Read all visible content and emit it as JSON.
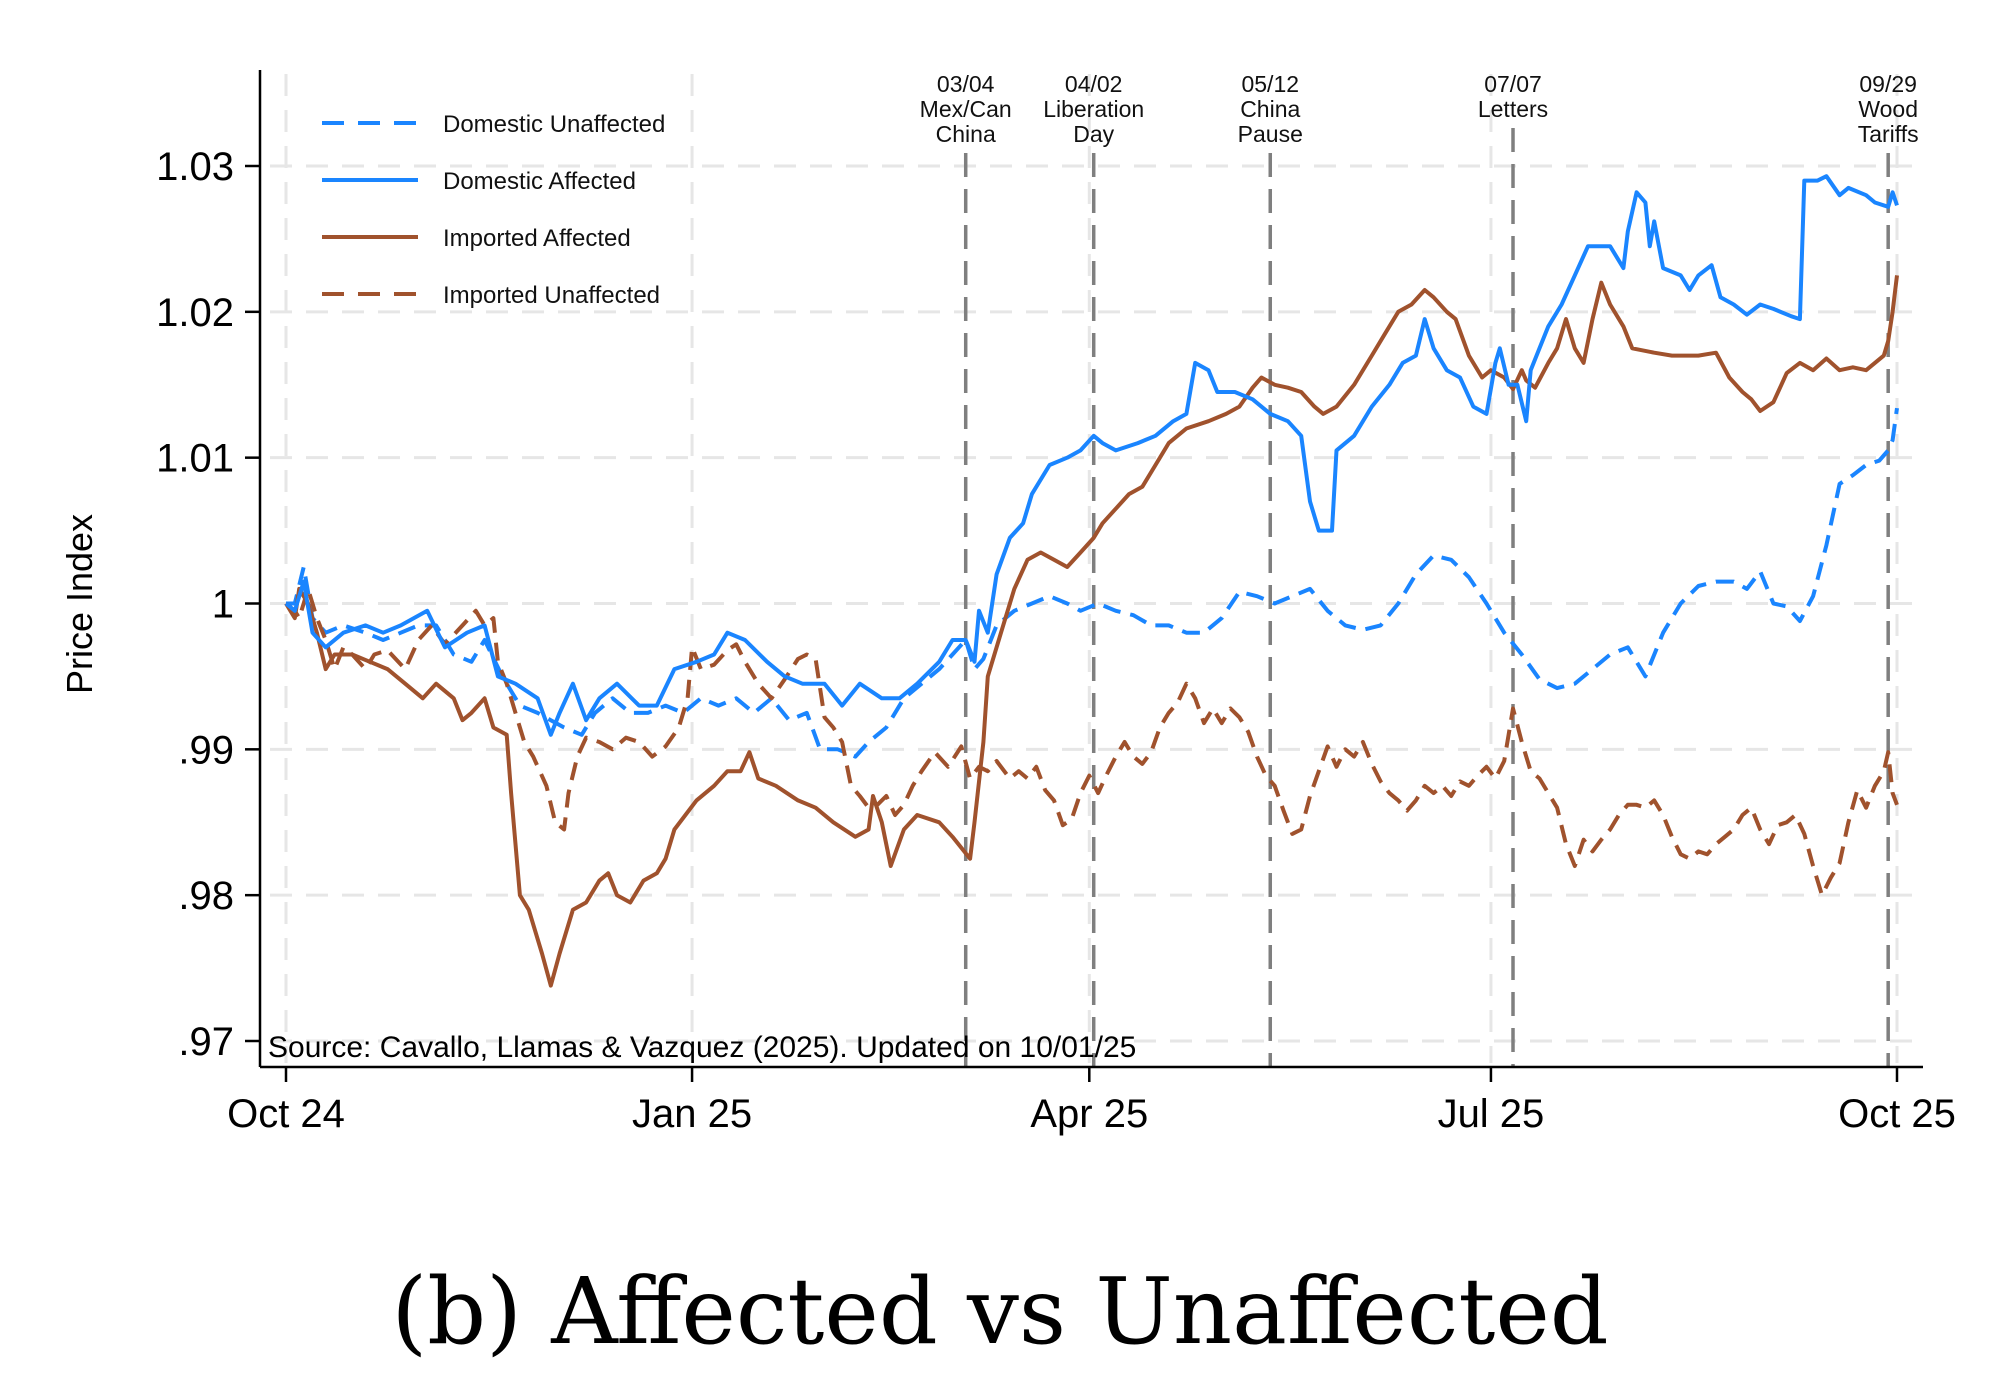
{
  "caption": "(b) Affected vs Unaffected",
  "chart_data": {
    "type": "line",
    "title": "",
    "xlabel": "",
    "ylabel": "Price Index",
    "x_units": "days since Oct 1, 2024",
    "xlim": [
      0,
      365
    ],
    "ylim": [
      0.97,
      1.035
    ],
    "x_ticks": [
      {
        "day": 0,
        "label": "Oct 24"
      },
      {
        "day": 92,
        "label": "Jan 25"
      },
      {
        "day": 182,
        "label": "Apr 25"
      },
      {
        "day": 273,
        "label": "Jul 25"
      },
      {
        "day": 365,
        "label": "Oct 25"
      }
    ],
    "y_ticks": [
      {
        "value": 0.97,
        "label": ".97"
      },
      {
        "value": 0.98,
        "label": ".98"
      },
      {
        "value": 0.99,
        "label": ".99"
      },
      {
        "value": 1.0,
        "label": "1"
      },
      {
        "value": 1.01,
        "label": "1.01"
      },
      {
        "value": 1.02,
        "label": "1.02"
      },
      {
        "value": 1.03,
        "label": "1.03"
      }
    ],
    "grid": true,
    "legend_position": "top-left",
    "note": "Source: Cavallo, Llamas & Vazquez (2025). Updated on 10/01/25",
    "events": [
      {
        "day": 154,
        "lines": [
          "03/04",
          "Mex/Can",
          "China"
        ]
      },
      {
        "day": 183,
        "lines": [
          "04/02",
          "Liberation",
          "Day"
        ]
      },
      {
        "day": 223,
        "lines": [
          "05/12",
          "China",
          "Pause"
        ]
      },
      {
        "day": 278,
        "lines": [
          "07/07",
          "Letters"
        ]
      },
      {
        "day": 363,
        "lines": [
          "09/29",
          "Wood",
          "Tariffs"
        ]
      }
    ],
    "series": [
      {
        "name": "Domestic Unaffected",
        "color": "#1a85ff",
        "style": "dashed",
        "x": [
          0,
          2,
          4,
          6,
          9,
          13,
          18,
          22,
          26,
          30,
          34,
          38,
          42,
          45,
          49,
          53,
          57,
          60,
          63,
          67,
          70,
          74,
          78,
          82,
          86,
          90,
          94,
          98,
          102,
          106,
          110,
          114,
          118,
          121,
          125,
          129,
          132,
          136,
          140,
          144,
          148,
          151,
          154,
          156,
          158,
          161,
          165,
          169,
          173,
          177,
          180,
          184,
          188,
          192,
          196,
          200,
          204,
          208,
          212,
          216,
          220,
          224,
          228,
          232,
          236,
          240,
          244,
          248,
          252,
          256,
          260,
          264,
          268,
          272,
          276,
          280,
          284,
          288,
          292,
          296,
          300,
          304,
          308,
          312,
          316,
          320,
          324,
          328,
          331,
          334,
          337,
          340,
          343,
          346,
          349,
          352,
          355,
          358,
          361,
          363,
          364,
          365
        ],
        "y": [
          1.0,
          1.0,
          1.0025,
          0.999,
          0.998,
          0.9985,
          0.998,
          0.9975,
          0.998,
          0.9985,
          0.9985,
          0.9965,
          0.996,
          0.9975,
          0.995,
          0.993,
          0.9925,
          0.992,
          0.9915,
          0.991,
          0.9925,
          0.9935,
          0.9925,
          0.9925,
          0.993,
          0.9925,
          0.9935,
          0.993,
          0.9935,
          0.9925,
          0.9935,
          0.992,
          0.9925,
          0.99,
          0.99,
          0.9895,
          0.9905,
          0.9915,
          0.9935,
          0.9945,
          0.9955,
          0.9965,
          0.9975,
          0.9955,
          0.9962,
          0.9985,
          0.9995,
          1.0,
          1.0005,
          1.0,
          0.9995,
          1.0,
          0.9995,
          0.9992,
          0.9985,
          0.9985,
          0.998,
          0.998,
          0.999,
          1.0008,
          1.0005,
          1.0,
          1.0005,
          1.001,
          0.9995,
          0.9985,
          0.9982,
          0.9985,
          1.0,
          1.002,
          1.0033,
          1.003,
          1.0018,
          1.0,
          0.998,
          0.9965,
          0.9948,
          0.9942,
          0.9945,
          0.9955,
          0.9965,
          0.997,
          0.995,
          0.998,
          1.0,
          1.0012,
          1.0015,
          1.0015,
          1.001,
          1.0022,
          1.0,
          0.9998,
          0.9988,
          1.0005,
          1.004,
          1.0082,
          1.0088,
          1.0095,
          1.0098,
          1.0105,
          1.0112,
          1.0134
        ]
      },
      {
        "name": "Domestic Affected",
        "color": "#1a85ff",
        "style": "solid",
        "x": [
          0,
          2,
          4,
          6,
          9,
          13,
          18,
          22,
          26,
          32,
          36,
          41,
          45,
          48,
          52,
          57,
          60,
          62,
          65,
          68,
          71,
          75,
          80,
          84,
          88,
          93,
          97,
          100,
          104,
          109,
          113,
          117,
          122,
          126,
          130,
          135,
          139,
          143,
          148,
          151,
          154,
          156,
          157,
          159,
          161,
          164,
          167,
          169,
          173,
          177,
          180,
          183,
          185,
          188,
          193,
          197,
          201,
          204,
          206,
          209,
          211,
          215,
          219,
          223,
          227,
          230,
          232,
          234,
          237,
          238,
          242,
          246,
          250,
          253,
          256,
          258,
          260,
          263,
          266,
          269,
          272,
          274,
          275,
          277,
          279,
          281,
          282,
          284,
          286,
          289,
          292,
          295,
          300,
          303,
          304,
          306,
          308,
          309,
          310,
          312,
          316,
          318,
          320,
          323,
          325,
          328,
          331,
          334,
          337,
          341,
          343,
          344,
          347,
          349,
          352,
          354,
          358,
          360,
          363,
          364,
          365
        ],
        "y": [
          1.0,
          0.9995,
          1.0015,
          0.998,
          0.997,
          0.998,
          0.9985,
          0.998,
          0.9985,
          0.9995,
          0.997,
          0.998,
          0.9985,
          0.995,
          0.9945,
          0.9935,
          0.991,
          0.9925,
          0.9945,
          0.992,
          0.9935,
          0.9945,
          0.993,
          0.993,
          0.9955,
          0.996,
          0.9965,
          0.998,
          0.9975,
          0.996,
          0.995,
          0.9945,
          0.9945,
          0.993,
          0.9945,
          0.9935,
          0.9935,
          0.9945,
          0.996,
          0.9975,
          0.9975,
          0.996,
          0.9995,
          0.998,
          1.002,
          1.0045,
          1.0055,
          1.0075,
          1.0095,
          1.01,
          1.0105,
          1.0115,
          1.011,
          1.0105,
          1.011,
          1.0115,
          1.0125,
          1.013,
          1.0165,
          1.016,
          1.0145,
          1.0145,
          1.014,
          1.013,
          1.0125,
          1.0115,
          1.007,
          1.005,
          1.005,
          1.0105,
          1.0115,
          1.0135,
          1.015,
          1.0165,
          1.017,
          1.0195,
          1.0175,
          1.016,
          1.0155,
          1.0135,
          1.013,
          1.0165,
          1.0175,
          1.015,
          1.015,
          1.0125,
          1.016,
          1.0175,
          1.019,
          1.0205,
          1.0225,
          1.0245,
          1.0245,
          1.023,
          1.0255,
          1.0282,
          1.0275,
          1.0245,
          1.0262,
          1.023,
          1.0225,
          1.0215,
          1.0225,
          1.0232,
          1.021,
          1.0205,
          1.0198,
          1.0205,
          1.0202,
          1.0197,
          1.0195,
          1.029,
          1.029,
          1.0293,
          1.028,
          1.0285,
          1.028,
          1.0275,
          1.0272,
          1.0282,
          1.0273
        ]
      },
      {
        "name": "Imported Affected",
        "color": "#a0522d",
        "style": "solid",
        "x": [
          0,
          2,
          3,
          5,
          7,
          9,
          11,
          15,
          19,
          23,
          27,
          31,
          34,
          38,
          40,
          42,
          45,
          47,
          50,
          51,
          53,
          55,
          58,
          60,
          62,
          65,
          68,
          71,
          73,
          75,
          78,
          81,
          84,
          86,
          88,
          93,
          97,
          100,
          103,
          105,
          107,
          111,
          116,
          120,
          124,
          129,
          132,
          133,
          135,
          137,
          140,
          143,
          148,
          151,
          155,
          156,
          158,
          159,
          162,
          165,
          168,
          171,
          174,
          177,
          180,
          183,
          185,
          188,
          191,
          194,
          197,
          200,
          204,
          209,
          213,
          216,
          219,
          221,
          224,
          227,
          230,
          233,
          235,
          238,
          242,
          246,
          249,
          252,
          255,
          258,
          260,
          263,
          265,
          268,
          271,
          273,
          276,
          278,
          280,
          281,
          283,
          286,
          288,
          290,
          292,
          294,
          296,
          298,
          300,
          303,
          305,
          310,
          314,
          320,
          324,
          327,
          330,
          332,
          334,
          337,
          340,
          343,
          346,
          349,
          352,
          355,
          358,
          360,
          362,
          363,
          364,
          365
        ],
        "y": [
          1.0,
          0.999,
          1.001,
          1.0,
          0.998,
          0.9955,
          0.9965,
          0.9965,
          0.996,
          0.9955,
          0.9945,
          0.9935,
          0.9945,
          0.9935,
          0.992,
          0.9925,
          0.9935,
          0.9915,
          0.991,
          0.987,
          0.98,
          0.979,
          0.976,
          0.9738,
          0.976,
          0.979,
          0.9795,
          0.981,
          0.9815,
          0.98,
          0.9795,
          0.981,
          0.9815,
          0.9825,
          0.9845,
          0.9865,
          0.9875,
          0.9885,
          0.9885,
          0.9898,
          0.988,
          0.9875,
          0.9865,
          0.986,
          0.985,
          0.984,
          0.9845,
          0.9868,
          0.985,
          0.982,
          0.9845,
          0.9855,
          0.985,
          0.984,
          0.9825,
          0.985,
          0.9905,
          0.995,
          0.998,
          1.001,
          1.003,
          1.0035,
          1.003,
          1.0025,
          1.0035,
          1.0045,
          1.0055,
          1.0065,
          1.0075,
          1.008,
          1.0095,
          1.011,
          1.012,
          1.0125,
          1.013,
          1.0135,
          1.0148,
          1.0155,
          1.015,
          1.0148,
          1.0145,
          1.0135,
          1.013,
          1.0135,
          1.015,
          1.017,
          1.0185,
          1.02,
          1.0205,
          1.0215,
          1.021,
          1.02,
          1.0195,
          1.017,
          1.0155,
          1.016,
          1.0155,
          1.0147,
          1.016,
          1.0153,
          1.0148,
          1.0165,
          1.0175,
          1.0195,
          1.0175,
          1.0165,
          1.0195,
          1.022,
          1.0205,
          1.019,
          1.0175,
          1.0172,
          1.017,
          1.017,
          1.0172,
          1.0155,
          1.0145,
          1.014,
          1.0132,
          1.0138,
          1.0158,
          1.0165,
          1.016,
          1.0168,
          1.016,
          1.0162,
          1.016,
          1.0165,
          1.017,
          1.018,
          1.02,
          1.0225
        ]
      },
      {
        "name": "Imported Unaffected",
        "color": "#a0522d",
        "style": "dashed",
        "x": [
          0,
          2,
          3,
          5,
          7,
          9,
          11,
          13,
          15,
          18,
          20,
          23,
          27,
          30,
          33,
          36,
          40,
          43,
          45,
          47,
          48,
          50,
          52,
          54,
          56,
          59,
          61,
          63,
          64,
          66,
          68,
          71,
          74,
          77,
          80,
          83,
          86,
          89,
          91,
          92,
          94,
          97,
          100,
          102,
          104,
          107,
          110,
          113,
          116,
          118,
          120,
          122,
          124,
          126,
          128,
          130,
          132,
          134,
          136,
          138,
          140,
          142,
          144,
          147,
          150,
          153,
          155,
          157,
          159,
          161,
          164,
          166,
          168,
          170,
          172,
          174,
          176,
          178,
          180,
          182,
          184,
          186,
          188,
          190,
          192,
          194,
          196,
          198,
          200,
          202,
          204,
          206,
          208,
          210,
          212,
          214,
          216,
          218,
          220,
          222,
          224,
          226,
          228,
          230,
          232,
          234,
          236,
          238,
          240,
          242,
          244,
          246,
          248,
          250,
          252,
          254,
          256,
          258,
          260,
          262,
          264,
          266,
          268,
          270,
          272,
          274,
          276,
          277,
          278,
          280,
          282,
          284,
          286,
          288,
          290,
          292,
          294,
          296,
          298,
          300,
          302,
          304,
          306,
          308,
          310,
          312,
          314,
          316,
          318,
          320,
          322,
          324,
          326,
          328,
          330,
          332,
          334,
          336,
          338,
          340,
          342,
          344,
          346,
          348,
          350,
          352,
          354,
          356,
          358,
          360,
          362,
          363,
          364,
          365
        ],
        "y": [
          1.0,
          0.9995,
          0.999,
          1.001,
          0.999,
          0.9975,
          0.9955,
          0.997,
          0.9965,
          0.9955,
          0.9965,
          0.9968,
          0.9955,
          0.9975,
          0.9985,
          0.9972,
          0.9985,
          0.9995,
          0.9985,
          0.999,
          0.996,
          0.9945,
          0.9925,
          0.9905,
          0.9895,
          0.9875,
          0.985,
          0.9845,
          0.987,
          0.9895,
          0.9908,
          0.9905,
          0.99,
          0.9908,
          0.9905,
          0.9895,
          0.9902,
          0.9915,
          0.9935,
          0.997,
          0.9955,
          0.9958,
          0.9968,
          0.9972,
          0.996,
          0.9945,
          0.9935,
          0.9948,
          0.9962,
          0.9965,
          0.9962,
          0.9922,
          0.9915,
          0.9905,
          0.9875,
          0.9868,
          0.986,
          0.9862,
          0.9868,
          0.9855,
          0.9862,
          0.9875,
          0.9885,
          0.9898,
          0.9888,
          0.9902,
          0.988,
          0.9888,
          0.9885,
          0.9892,
          0.988,
          0.9885,
          0.988,
          0.9888,
          0.9872,
          0.9865,
          0.9848,
          0.9852,
          0.987,
          0.9882,
          0.987,
          0.9883,
          0.9895,
          0.9905,
          0.9895,
          0.989,
          0.9898,
          0.9915,
          0.9925,
          0.9932,
          0.9945,
          0.9935,
          0.9918,
          0.9928,
          0.9918,
          0.9928,
          0.9922,
          0.9912,
          0.9895,
          0.9882,
          0.9875,
          0.9858,
          0.9842,
          0.9845,
          0.9868,
          0.9885,
          0.9902,
          0.9888,
          0.99,
          0.9895,
          0.9905,
          0.989,
          0.9878,
          0.987,
          0.9865,
          0.9858,
          0.9865,
          0.9875,
          0.987,
          0.9875,
          0.9868,
          0.9878,
          0.9875,
          0.9882,
          0.9888,
          0.988,
          0.9892,
          0.991,
          0.9928,
          0.9905,
          0.9885,
          0.988,
          0.987,
          0.986,
          0.9835,
          0.982,
          0.9838,
          0.983,
          0.9838,
          0.9845,
          0.9855,
          0.9862,
          0.9862,
          0.986,
          0.9865,
          0.9855,
          0.984,
          0.9828,
          0.9825,
          0.983,
          0.9828,
          0.9835,
          0.984,
          0.9845,
          0.9855,
          0.986,
          0.9845,
          0.9835,
          0.9848,
          0.985,
          0.9855,
          0.9842,
          0.982,
          0.98,
          0.9812,
          0.9822,
          0.985,
          0.9872,
          0.986,
          0.9875,
          0.9885,
          0.9898,
          0.987,
          0.9862
        ]
      }
    ]
  }
}
